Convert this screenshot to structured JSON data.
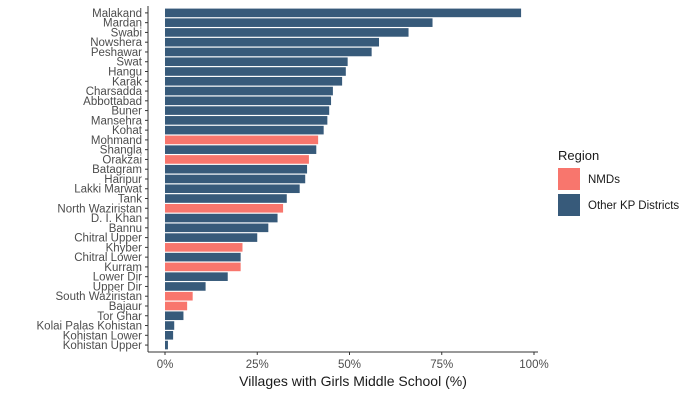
{
  "chart_data": {
    "type": "bar",
    "orientation": "horizontal",
    "xlabel": "Villages with Girls Middle School (%)",
    "xlim": [
      0,
      100
    ],
    "xticks": [
      0,
      25,
      50,
      75,
      100
    ],
    "xtick_labels": [
      "0%",
      "25%",
      "50%",
      "75%",
      "100%"
    ],
    "grid": false,
    "legend": {
      "title": "Region",
      "placement": "right",
      "entries": [
        {
          "name": "NMDs",
          "color": "#F8766D"
        },
        {
          "name": "Other KP Districts",
          "color": "#375A7A"
        }
      ]
    },
    "categories": [
      "Malakand",
      "Mardan",
      "Swabi",
      "Nowshera",
      "Peshawar",
      "Swat",
      "Hangu",
      "Karak",
      "Charsadda",
      "Abbottabad",
      "Buner",
      "Mansehra",
      "Kohat",
      "Mohmand",
      "Shangla",
      "Orakzai",
      "Batagram",
      "Haripur",
      "Lakki Marwat",
      "Tank",
      "North Waziristan",
      "D. I. Khan",
      "Bannu",
      "Chitral Upper",
      "Khyber",
      "Chitral Lower",
      "Kurram",
      "Lower Dir",
      "Upper Dir",
      "South Waziristan",
      "Bajaur",
      "Tor Ghar",
      "Kolai Palas Kohistan",
      "Kohistan Lower",
      "Kohistan Upper"
    ],
    "values": [
      96.5,
      72.5,
      66,
      58,
      56,
      49.5,
      49,
      48,
      45.5,
      45,
      44.5,
      44,
      43,
      41.5,
      41,
      39,
      38.5,
      38,
      36.5,
      33,
      32,
      30.5,
      28,
      25,
      21,
      20.5,
      20.5,
      17,
      11,
      7.5,
      6,
      5,
      2.5,
      2.2,
      0.8
    ],
    "region": [
      "Other KP Districts",
      "Other KP Districts",
      "Other KP Districts",
      "Other KP Districts",
      "Other KP Districts",
      "Other KP Districts",
      "Other KP Districts",
      "Other KP Districts",
      "Other KP Districts",
      "Other KP Districts",
      "Other KP Districts",
      "Other KP Districts",
      "Other KP Districts",
      "NMDs",
      "Other KP Districts",
      "NMDs",
      "Other KP Districts",
      "Other KP Districts",
      "Other KP Districts",
      "Other KP Districts",
      "NMDs",
      "Other KP Districts",
      "Other KP Districts",
      "Other KP Districts",
      "NMDs",
      "Other KP Districts",
      "NMDs",
      "Other KP Districts",
      "Other KP Districts",
      "NMDs",
      "NMDs",
      "Other KP Districts",
      "Other KP Districts",
      "Other KP Districts",
      "Other KP Districts"
    ]
  }
}
